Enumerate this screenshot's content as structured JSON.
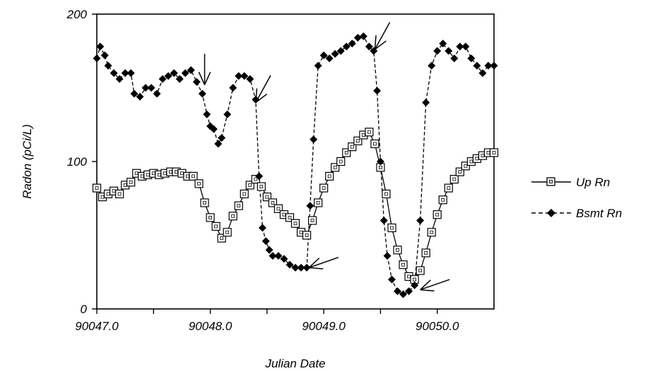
{
  "chart_data": {
    "type": "line",
    "title": "",
    "xlabel": "Julian Date",
    "ylabel": "Radon (pCi/L)",
    "xlim": [
      90047.0,
      90050.5
    ],
    "ylim": [
      0,
      200
    ],
    "x_ticks": [
      90047.0,
      90047.5,
      90048.0,
      90048.5,
      90049.0,
      90049.5,
      90050.0
    ],
    "x_tick_labels": [
      "90047.0",
      "90048.0",
      "90049.0",
      "90050.0"
    ],
    "x_tick_label_values": [
      90047.0,
      90048.0,
      90049.0,
      90050.0
    ],
    "y_ticks": [
      0,
      100,
      200
    ],
    "y_tick_labels": [
      "0",
      "100",
      "200"
    ],
    "grid": false,
    "legend_position": "right",
    "series": [
      {
        "name": "Up Rn",
        "line_style": "solid",
        "marker": "open-square",
        "color": "#000000",
        "points": [
          [
            90047.0,
            82
          ],
          [
            90047.05,
            76
          ],
          [
            90047.1,
            78
          ],
          [
            90047.15,
            80
          ],
          [
            90047.2,
            78
          ],
          [
            90047.25,
            84
          ],
          [
            90047.3,
            86
          ],
          [
            90047.35,
            92
          ],
          [
            90047.4,
            90
          ],
          [
            90047.45,
            91
          ],
          [
            90047.5,
            92
          ],
          [
            90047.55,
            91
          ],
          [
            90047.6,
            92
          ],
          [
            90047.65,
            93
          ],
          [
            90047.7,
            93
          ],
          [
            90047.75,
            92
          ],
          [
            90047.8,
            90
          ],
          [
            90047.85,
            90
          ],
          [
            90047.9,
            85
          ],
          [
            90047.95,
            72
          ],
          [
            90048.0,
            62
          ],
          [
            90048.05,
            56
          ],
          [
            90048.1,
            48
          ],
          [
            90048.15,
            52
          ],
          [
            90048.2,
            63
          ],
          [
            90048.25,
            70
          ],
          [
            90048.3,
            78
          ],
          [
            90048.35,
            84
          ],
          [
            90048.4,
            88
          ],
          [
            90048.45,
            83
          ],
          [
            90048.5,
            76
          ],
          [
            90048.55,
            72
          ],
          [
            90048.6,
            68
          ],
          [
            90048.65,
            64
          ],
          [
            90048.7,
            62
          ],
          [
            90048.75,
            58
          ],
          [
            90048.8,
            52
          ],
          [
            90048.85,
            50
          ],
          [
            90048.9,
            60
          ],
          [
            90048.95,
            72
          ],
          [
            90049.0,
            82
          ],
          [
            90049.05,
            90
          ],
          [
            90049.1,
            96
          ],
          [
            90049.15,
            100
          ],
          [
            90049.2,
            106
          ],
          [
            90049.25,
            110
          ],
          [
            90049.3,
            114
          ],
          [
            90049.35,
            118
          ],
          [
            90049.4,
            120
          ],
          [
            90049.45,
            112
          ],
          [
            90049.5,
            96
          ],
          [
            90049.55,
            78
          ],
          [
            90049.6,
            55
          ],
          [
            90049.65,
            40
          ],
          [
            90049.7,
            30
          ],
          [
            90049.75,
            22
          ],
          [
            90049.8,
            20
          ],
          [
            90049.85,
            26
          ],
          [
            90049.9,
            38
          ],
          [
            90049.95,
            52
          ],
          [
            90050.0,
            64
          ],
          [
            90050.05,
            74
          ],
          [
            90050.1,
            82
          ],
          [
            90050.15,
            88
          ],
          [
            90050.2,
            93
          ],
          [
            90050.25,
            97
          ],
          [
            90050.3,
            100
          ],
          [
            90050.35,
            102
          ],
          [
            90050.4,
            104
          ],
          [
            90050.45,
            106
          ],
          [
            90050.5,
            106
          ]
        ]
      },
      {
        "name": "Bsmt Rn",
        "line_style": "dashed",
        "marker": "filled-diamond",
        "color": "#000000",
        "points": [
          [
            90047.0,
            170
          ],
          [
            90047.03,
            178
          ],
          [
            90047.07,
            172
          ],
          [
            90047.1,
            165
          ],
          [
            90047.15,
            160
          ],
          [
            90047.2,
            156
          ],
          [
            90047.25,
            160
          ],
          [
            90047.3,
            160
          ],
          [
            90047.33,
            146
          ],
          [
            90047.38,
            144
          ],
          [
            90047.43,
            150
          ],
          [
            90047.48,
            150
          ],
          [
            90047.53,
            146
          ],
          [
            90047.58,
            156
          ],
          [
            90047.63,
            158
          ],
          [
            90047.68,
            160
          ],
          [
            90047.73,
            156
          ],
          [
            90047.78,
            160
          ],
          [
            90047.83,
            162
          ],
          [
            90047.88,
            154
          ],
          [
            90047.93,
            146
          ],
          [
            90047.97,
            132
          ],
          [
            90048.0,
            124
          ],
          [
            90048.03,
            122
          ],
          [
            90048.07,
            112
          ],
          [
            90048.1,
            116
          ],
          [
            90048.15,
            132
          ],
          [
            90048.2,
            150
          ],
          [
            90048.25,
            158
          ],
          [
            90048.3,
            158
          ],
          [
            90048.35,
            156
          ],
          [
            90048.4,
            142
          ],
          [
            90048.43,
            90
          ],
          [
            90048.46,
            55
          ],
          [
            90048.49,
            46
          ],
          [
            90048.52,
            40
          ],
          [
            90048.55,
            36
          ],
          [
            90048.6,
            36
          ],
          [
            90048.65,
            34
          ],
          [
            90048.7,
            30
          ],
          [
            90048.75,
            28
          ],
          [
            90048.8,
            28
          ],
          [
            90048.85,
            28
          ],
          [
            90048.88,
            70
          ],
          [
            90048.91,
            115
          ],
          [
            90048.95,
            165
          ],
          [
            90049.0,
            172
          ],
          [
            90049.05,
            170
          ],
          [
            90049.1,
            173
          ],
          [
            90049.15,
            175
          ],
          [
            90049.2,
            178
          ],
          [
            90049.25,
            180
          ],
          [
            90049.3,
            184
          ],
          [
            90049.35,
            185
          ],
          [
            90049.4,
            178
          ],
          [
            90049.44,
            175
          ],
          [
            90049.47,
            148
          ],
          [
            90049.5,
            100
          ],
          [
            90049.53,
            60
          ],
          [
            90049.56,
            36
          ],
          [
            90049.6,
            20
          ],
          [
            90049.65,
            12
          ],
          [
            90049.7,
            10
          ],
          [
            90049.75,
            12
          ],
          [
            90049.8,
            16
          ],
          [
            90049.85,
            60
          ],
          [
            90049.9,
            140
          ],
          [
            90049.95,
            165
          ],
          [
            90050.0,
            175
          ],
          [
            90050.05,
            180
          ],
          [
            90050.1,
            175
          ],
          [
            90050.15,
            170
          ],
          [
            90050.2,
            178
          ],
          [
            90050.25,
            178
          ],
          [
            90050.3,
            170
          ],
          [
            90050.35,
            165
          ],
          [
            90050.4,
            160
          ],
          [
            90050.45,
            165
          ],
          [
            90050.5,
            165
          ]
        ]
      }
    ],
    "annotations": [
      {
        "type": "arrow",
        "x": 90047.95,
        "y": 152,
        "direction": "down"
      },
      {
        "type": "arrow",
        "x": 90048.4,
        "y": 140,
        "direction": "down-left"
      },
      {
        "type": "arrow",
        "x": 90048.87,
        "y": 28,
        "direction": "left"
      },
      {
        "type": "arrow",
        "x": 90049.45,
        "y": 176,
        "direction": "down-left"
      },
      {
        "type": "arrow",
        "x": 90049.85,
        "y": 13,
        "direction": "left"
      }
    ]
  }
}
